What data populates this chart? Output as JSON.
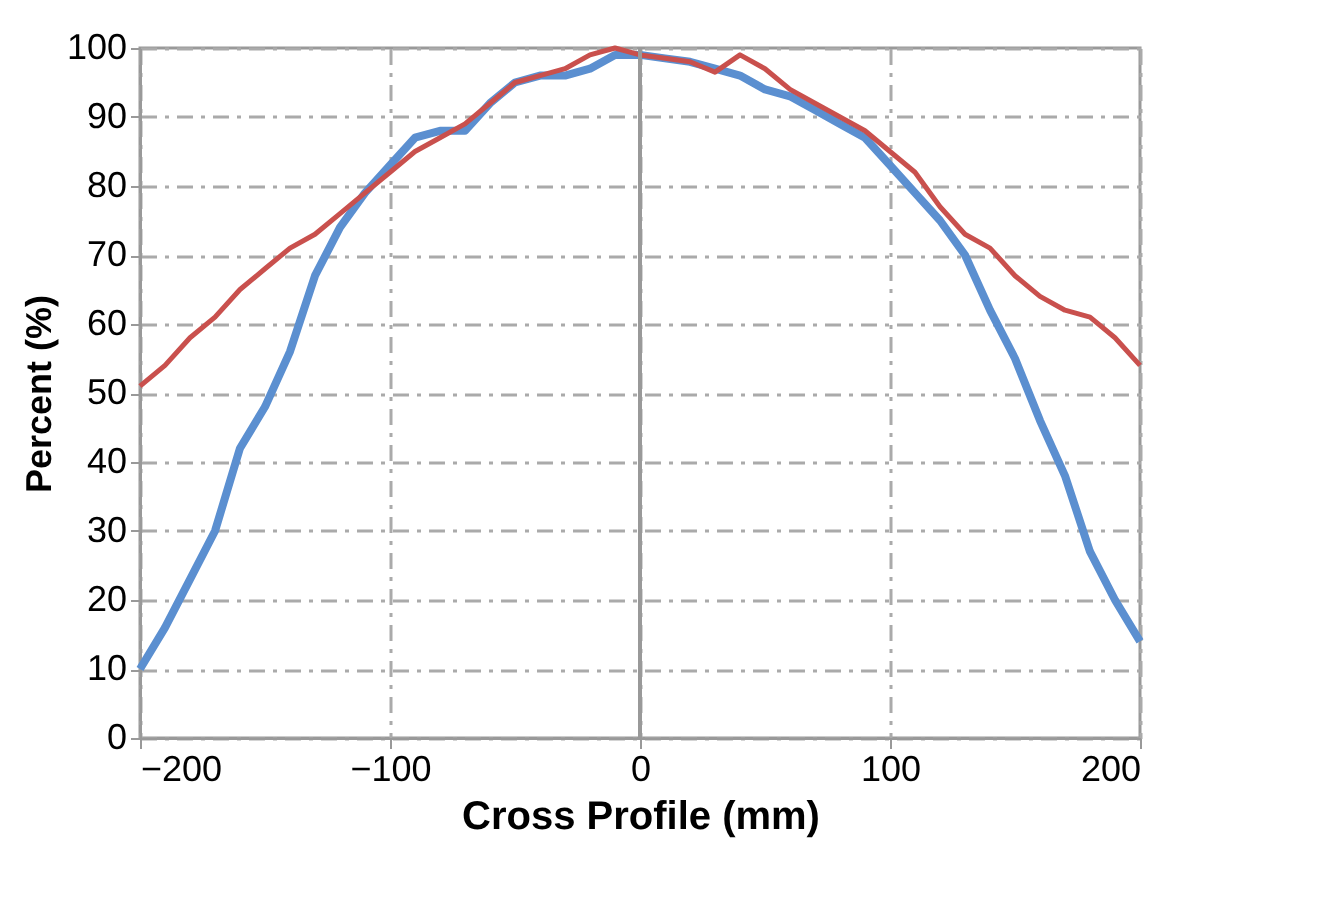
{
  "chart_data": {
    "type": "line",
    "xlabel": "Cross Profile (mm)",
    "ylabel": "Percent (%)",
    "x": [
      -200,
      -190,
      -180,
      -170,
      -160,
      -150,
      -140,
      -130,
      -120,
      -110,
      -100,
      -90,
      -80,
      -70,
      -60,
      -50,
      -40,
      -30,
      -20,
      -10,
      0,
      10,
      20,
      30,
      40,
      50,
      60,
      70,
      80,
      90,
      100,
      110,
      120,
      130,
      140,
      150,
      160,
      170,
      180,
      190,
      200
    ],
    "series": [
      {
        "color": "#5b8fd0",
        "values": [
          10,
          16,
          23,
          30,
          42,
          48,
          56,
          67,
          74,
          79,
          83,
          87,
          88,
          88,
          92,
          95,
          96,
          96,
          97,
          99,
          99,
          98.5,
          98,
          97,
          96,
          94,
          93,
          91,
          89,
          87,
          83,
          79,
          75,
          70,
          62,
          55,
          46,
          38,
          27,
          20,
          14
        ]
      },
      {
        "color": "#c9504d",
        "values": [
          51,
          54,
          58,
          61,
          65,
          68,
          71,
          73,
          76,
          79,
          82,
          85,
          87,
          89,
          92,
          95,
          96,
          97,
          99,
          100,
          99,
          98.5,
          98,
          96.5,
          99,
          97,
          94,
          92,
          90,
          88,
          85,
          82,
          77,
          73,
          71,
          67,
          64,
          62,
          61,
          58,
          54
        ]
      }
    ],
    "xlim": [
      -200,
      200
    ],
    "xticks": [
      -200,
      -100,
      0,
      100,
      200
    ],
    "ylim": [
      0,
      100
    ],
    "yticks": [
      0,
      10,
      20,
      30,
      40,
      50,
      60,
      70,
      80,
      90,
      100
    ],
    "grid": true,
    "marker": "none",
    "line_style": "solid"
  }
}
